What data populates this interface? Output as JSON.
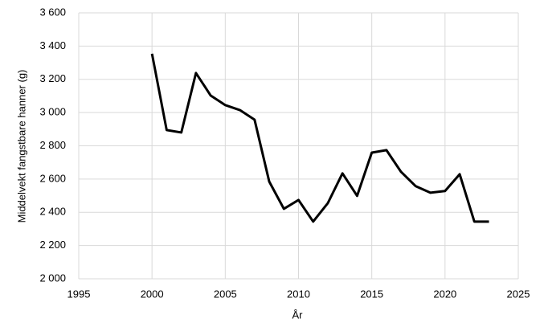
{
  "chart_data": {
    "type": "line",
    "x_label": "År",
    "y_label": "Middelvekt fangstbare hanner (g)",
    "x": [
      2000,
      2001,
      2002,
      2003,
      2004,
      2005,
      2006,
      2007,
      2008,
      2009,
      2010,
      2011,
      2012,
      2013,
      2014,
      2015,
      2016,
      2017,
      2018,
      2019,
      2020,
      2021,
      2022,
      2023
    ],
    "values": [
      3354,
      2895,
      2880,
      3238,
      3103,
      3045,
      3015,
      2957,
      2585,
      2421,
      2474,
      2344,
      2455,
      2634,
      2499,
      2759,
      2774,
      2643,
      2557,
      2518,
      2528,
      2629,
      2344,
      2344
    ],
    "color": "#000000",
    "xlim": [
      1995,
      2025
    ],
    "xticks": [
      1995,
      2000,
      2005,
      2010,
      2015,
      2020,
      2025
    ],
    "ylim": [
      2000,
      3600
    ],
    "yticks": [
      {
        "value": 2000,
        "label": "2 000"
      },
      {
        "value": 2200,
        "label": "2 200"
      },
      {
        "value": 2400,
        "label": "2 400"
      },
      {
        "value": 2600,
        "label": "2 600"
      },
      {
        "value": 2800,
        "label": "2 800"
      },
      {
        "value": 3000,
        "label": "3 000"
      },
      {
        "value": 3200,
        "label": "3 200"
      },
      {
        "value": 3400,
        "label": "3 400"
      },
      {
        "value": 3600,
        "label": "3 600"
      }
    ],
    "grid": true
  }
}
